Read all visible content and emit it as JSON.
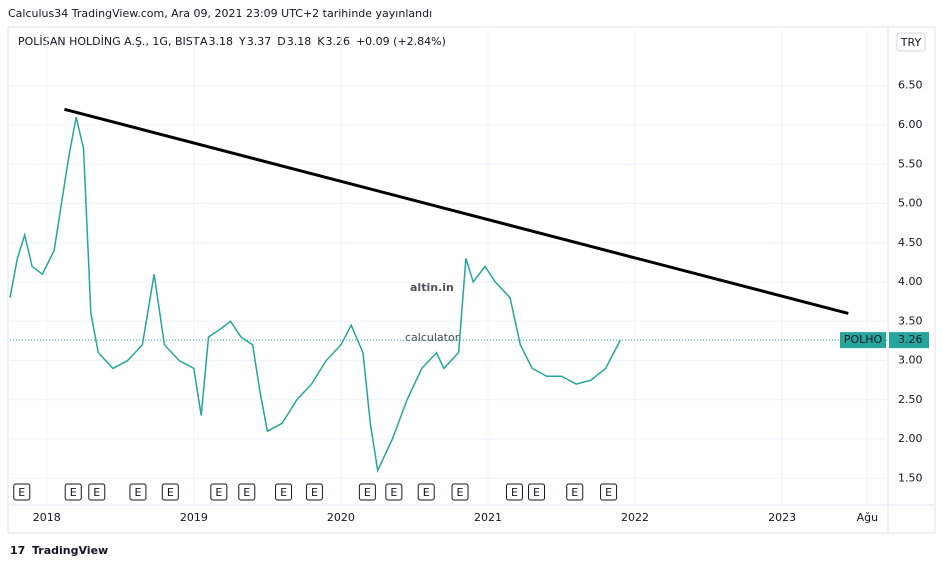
{
  "header": "Calculus34 TradingView.com, Ara 09, 2021 23:09 UTC+2 tarihinde yayınlandı",
  "footer": "TradingView",
  "chart_data": {
    "type": "line",
    "title": "POLİSAN HOLDİNG A.Ş., 1G, BIST",
    "ohlc": [
      {
        "label": "A",
        "value": 3.18
      },
      {
        "label": "Y",
        "value": 3.37
      },
      {
        "label": "D",
        "value": 3.18
      },
      {
        "label": "K",
        "value": 3.26
      }
    ],
    "change": "+0.09 (+2.84%)",
    "currency": "TRY",
    "last_price": 3.26,
    "watermark": [
      "altin.in",
      "calculator"
    ],
    "x": [
      2017.75,
      2017.8,
      2017.85,
      2017.9,
      2017.97,
      2018.05,
      2018.1,
      2018.15,
      2018.2,
      2018.25,
      2018.3,
      2018.35,
      2018.45,
      2018.55,
      2018.65,
      2018.73,
      2018.8,
      2018.9,
      2019.0,
      2019.05,
      2019.1,
      2019.18,
      2019.25,
      2019.32,
      2019.4,
      2019.45,
      2019.5,
      2019.6,
      2019.7,
      2019.8,
      2019.9,
      2020.0,
      2020.07,
      2020.15,
      2020.2,
      2020.25,
      2020.35,
      2020.45,
      2020.55,
      2020.65,
      2020.7,
      2020.8,
      2020.85,
      2020.9,
      2020.98,
      2021.05,
      2021.15,
      2021.22,
      2021.3,
      2021.4,
      2021.5,
      2021.6,
      2021.7,
      2021.8,
      2021.9
    ],
    "series": [
      {
        "name": "POLHO",
        "color": "#26a69a",
        "values": [
          3.8,
          4.3,
          4.6,
          4.2,
          4.1,
          4.4,
          5.0,
          5.6,
          6.1,
          5.7,
          3.6,
          3.1,
          2.9,
          3.0,
          3.2,
          4.1,
          3.2,
          3.0,
          2.9,
          2.3,
          3.3,
          3.4,
          3.5,
          3.3,
          3.2,
          2.6,
          2.1,
          2.2,
          2.5,
          2.7,
          3.0,
          3.2,
          3.45,
          3.1,
          2.2,
          1.6,
          2.0,
          2.5,
          2.9,
          3.1,
          2.9,
          3.1,
          4.3,
          4.0,
          4.2,
          4.0,
          3.8,
          3.2,
          2.9,
          2.8,
          2.8,
          2.7,
          2.75,
          2.9,
          3.26
        ]
      }
    ],
    "trendline": {
      "x": [
        2018.12,
        2023.45
      ],
      "values": [
        6.2,
        3.6
      ],
      "color": "#000000"
    },
    "earnings": {
      "label": "E",
      "x": [
        2017.83,
        2018.18,
        2018.34,
        2018.62,
        2018.84,
        2019.17,
        2019.36,
        2019.61,
        2019.82,
        2020.18,
        2020.36,
        2020.58,
        2020.81,
        2021.18,
        2021.33,
        2021.59,
        2021.82
      ]
    },
    "xlim": [
      2017.75,
      2023.72
    ],
    "xticks": [
      2018,
      2019,
      2020,
      2021,
      2022,
      2023,
      {
        "value": 2023.58,
        "label": "Ağu"
      }
    ],
    "ylim": [
      1.16,
      7.21
    ],
    "yticks": [
      {
        "value": 1.5,
        "label": "1.50"
      },
      {
        "value": 2,
        "label": "2.00"
      },
      {
        "value": 2.5,
        "label": "2.50"
      },
      {
        "value": 3,
        "label": "3.00"
      },
      {
        "value": 3.5,
        "label": "3.50"
      },
      {
        "value": 4,
        "label": "4.00"
      },
      {
        "value": 4.5,
        "label": "4.50"
      },
      {
        "value": 5,
        "label": "5.00"
      },
      {
        "value": 5.5,
        "label": "5.50"
      },
      {
        "value": 6,
        "label": "6.00"
      },
      {
        "value": 6.5,
        "label": "6.50"
      }
    ],
    "grid": true
  }
}
